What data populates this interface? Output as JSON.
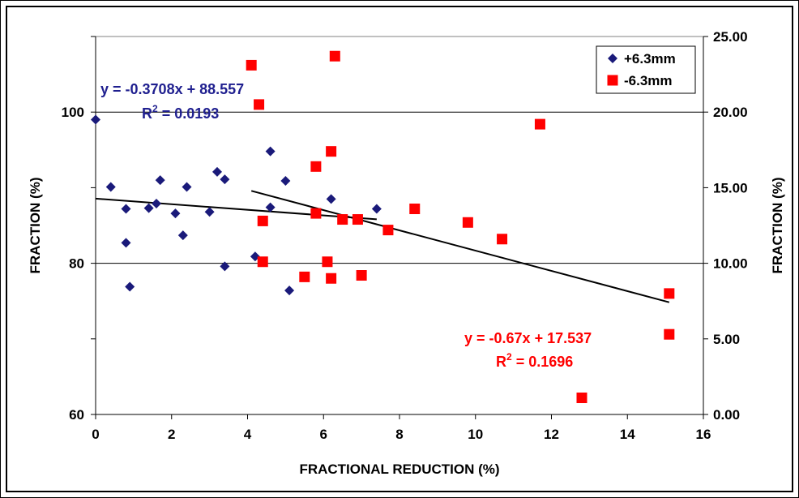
{
  "chart_data": {
    "type": "scatter",
    "xlabel": "FRACTIONAL REDUCTION (%)",
    "ylabel_left": "FRACTION (%)",
    "ylabel_right": "FRACTION (%)",
    "xlim": [
      0,
      16
    ],
    "ylim_left": [
      60,
      110
    ],
    "ylim_right": [
      0,
      25
    ],
    "x_ticks": [
      "0",
      "2",
      "4",
      "6",
      "8",
      "10",
      "12",
      "14",
      "16"
    ],
    "y_left_ticks": [
      "60",
      "80",
      "100"
    ],
    "y_right_ticks": [
      "0.00",
      "5.00",
      "10.00",
      "15.00",
      "20.00",
      "25.00"
    ],
    "grid": "horizontal",
    "legend_position": "top-right",
    "series": [
      {
        "name": "+6.3mm",
        "axis": "left",
        "marker": "diamond",
        "color": "#1a1a7a",
        "points": [
          [
            0.0,
            99.0
          ],
          [
            0.4,
            90.1
          ],
          [
            0.8,
            87.2
          ],
          [
            0.8,
            82.7
          ],
          [
            0.9,
            76.9
          ],
          [
            1.4,
            87.3
          ],
          [
            1.6,
            87.9
          ],
          [
            1.7,
            91.0
          ],
          [
            2.1,
            86.6
          ],
          [
            2.3,
            83.7
          ],
          [
            2.4,
            90.1
          ],
          [
            3.0,
            86.8
          ],
          [
            3.2,
            92.1
          ],
          [
            3.4,
            91.1
          ],
          [
            3.4,
            79.6
          ],
          [
            4.2,
            80.9
          ],
          [
            4.6,
            87.4
          ],
          [
            4.6,
            94.8
          ],
          [
            5.0,
            90.9
          ],
          [
            5.1,
            76.4
          ],
          [
            6.2,
            88.5
          ],
          [
            7.4,
            87.2
          ]
        ],
        "trendline": {
          "equation": "y = -0.3708x + 88.557",
          "r2": "R² = 0.0193",
          "slope": -0.3708,
          "intercept": 88.557,
          "x_range": [
            0,
            7.4
          ]
        }
      },
      {
        "name": "-6.3mm",
        "axis": "right",
        "marker": "square",
        "color": "#ff0000",
        "points": [
          [
            4.1,
            23.1
          ],
          [
            4.3,
            20.5
          ],
          [
            4.4,
            12.8
          ],
          [
            4.4,
            10.1
          ],
          [
            5.5,
            9.1
          ],
          [
            5.8,
            16.4
          ],
          [
            5.8,
            13.3
          ],
          [
            6.1,
            10.1
          ],
          [
            6.2,
            17.4
          ],
          [
            6.2,
            9.0
          ],
          [
            6.3,
            23.7
          ],
          [
            6.5,
            12.9
          ],
          [
            6.9,
            12.9
          ],
          [
            7.0,
            9.2
          ],
          [
            7.7,
            12.2
          ],
          [
            8.4,
            13.6
          ],
          [
            9.8,
            12.7
          ],
          [
            10.7,
            11.6
          ],
          [
            11.7,
            19.2
          ],
          [
            12.8,
            1.1
          ],
          [
            15.1,
            8.0
          ],
          [
            15.1,
            5.3
          ]
        ],
        "trendline": {
          "equation": "y = -0.67x + 17.537",
          "r2": "R² = 0.1696",
          "slope": -0.67,
          "intercept": 17.537,
          "x_range": [
            4.1,
            15.1
          ]
        }
      }
    ]
  }
}
